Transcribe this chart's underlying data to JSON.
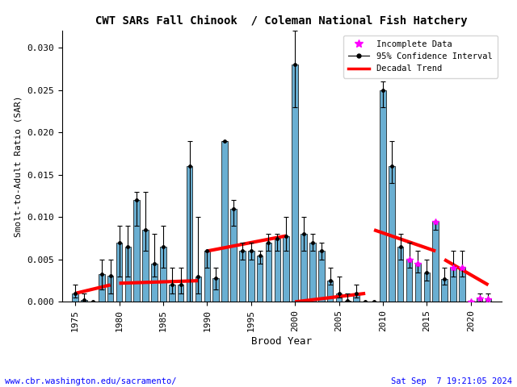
{
  "title": "CWT SARs Fall Chinook  / Coleman National Fish Hatchery",
  "xlabel": "Brood Year",
  "ylabel": "Smolt-to-Adult Ratio (SAR)",
  "ylim": [
    0,
    0.032
  ],
  "bar_color": "#6aafd2",
  "bar_edge_color": "#000000",
  "years": [
    1975,
    1976,
    1977,
    1978,
    1979,
    1980,
    1981,
    1982,
    1983,
    1984,
    1985,
    1986,
    1987,
    1988,
    1989,
    1990,
    1991,
    1992,
    1993,
    1994,
    1995,
    1996,
    1997,
    1998,
    1999,
    2000,
    2001,
    2002,
    2003,
    2004,
    2005,
    2006,
    2007,
    2008,
    2009,
    2010,
    2011,
    2012,
    2013,
    2014,
    2015,
    2016,
    2017,
    2018,
    2019,
    2020,
    2021,
    2022
  ],
  "sar": [
    0.001,
    0.0002,
    0.0,
    0.0033,
    0.0031,
    0.007,
    0.0065,
    0.012,
    0.0085,
    0.0045,
    0.0065,
    0.002,
    0.002,
    0.016,
    0.003,
    0.006,
    0.0028,
    0.019,
    0.011,
    0.006,
    0.006,
    0.0055,
    0.007,
    0.0075,
    0.0078,
    0.028,
    0.008,
    0.007,
    0.006,
    0.0025,
    0.001,
    0.0001,
    0.001,
    0.0,
    0.0,
    0.025,
    0.016,
    0.0065,
    0.005,
    0.0045,
    0.0035,
    0.0095,
    0.0027,
    0.004,
    0.004,
    0.0,
    0.0004,
    0.0003
  ],
  "ci_lo": [
    0.0005,
    0.0,
    0.0,
    0.0015,
    0.001,
    0.003,
    0.003,
    0.009,
    0.006,
    0.003,
    0.004,
    0.001,
    0.001,
    0.0,
    0.001,
    0.004,
    0.0015,
    0.019,
    0.009,
    0.005,
    0.005,
    0.0045,
    0.006,
    0.006,
    0.006,
    0.023,
    0.006,
    0.006,
    0.005,
    0.002,
    0.0005,
    0.0,
    0.0005,
    0.0,
    0.0,
    0.023,
    0.014,
    0.005,
    0.004,
    0.0035,
    0.0025,
    0.0085,
    0.002,
    0.003,
    0.003,
    0.0,
    0.0,
    0.0
  ],
  "ci_hi": [
    0.002,
    0.001,
    0.0,
    0.005,
    0.005,
    0.009,
    0.009,
    0.013,
    0.013,
    0.008,
    0.009,
    0.004,
    0.004,
    0.019,
    0.01,
    0.006,
    0.004,
    0.019,
    0.012,
    0.007,
    0.007,
    0.006,
    0.008,
    0.008,
    0.01,
    0.032,
    0.01,
    0.008,
    0.007,
    0.004,
    0.003,
    0.001,
    0.002,
    0.0,
    0.0,
    0.026,
    0.019,
    0.008,
    0.007,
    0.006,
    0.005,
    0.0095,
    0.004,
    0.006,
    0.006,
    0.0,
    0.001,
    0.001
  ],
  "incomplete": [
    2013,
    2014,
    2016,
    2018,
    2019,
    2020,
    2021,
    2022
  ],
  "decadal_trends": [
    {
      "x": [
        1975,
        1979
      ],
      "y": [
        0.001,
        0.002
      ]
    },
    {
      "x": [
        1980,
        1989
      ],
      "y": [
        0.0022,
        0.0025
      ]
    },
    {
      "x": [
        1990,
        1999
      ],
      "y": [
        0.006,
        0.0078
      ]
    },
    {
      "x": [
        2000,
        2008
      ],
      "y": [
        0.0,
        0.001
      ]
    },
    {
      "x": [
        2009,
        2016
      ],
      "y": [
        0.0085,
        0.006
      ]
    },
    {
      "x": [
        2017,
        2022
      ],
      "y": [
        0.005,
        0.002
      ]
    }
  ],
  "footer_left": "www.cbr.washington.edu/sacramento/",
  "footer_right": "Sat Sep  7 19:21:05 2024",
  "legend_incomplete_color": "#ff00ff",
  "trend_color": "#ff0000",
  "trend_linewidth": 3
}
